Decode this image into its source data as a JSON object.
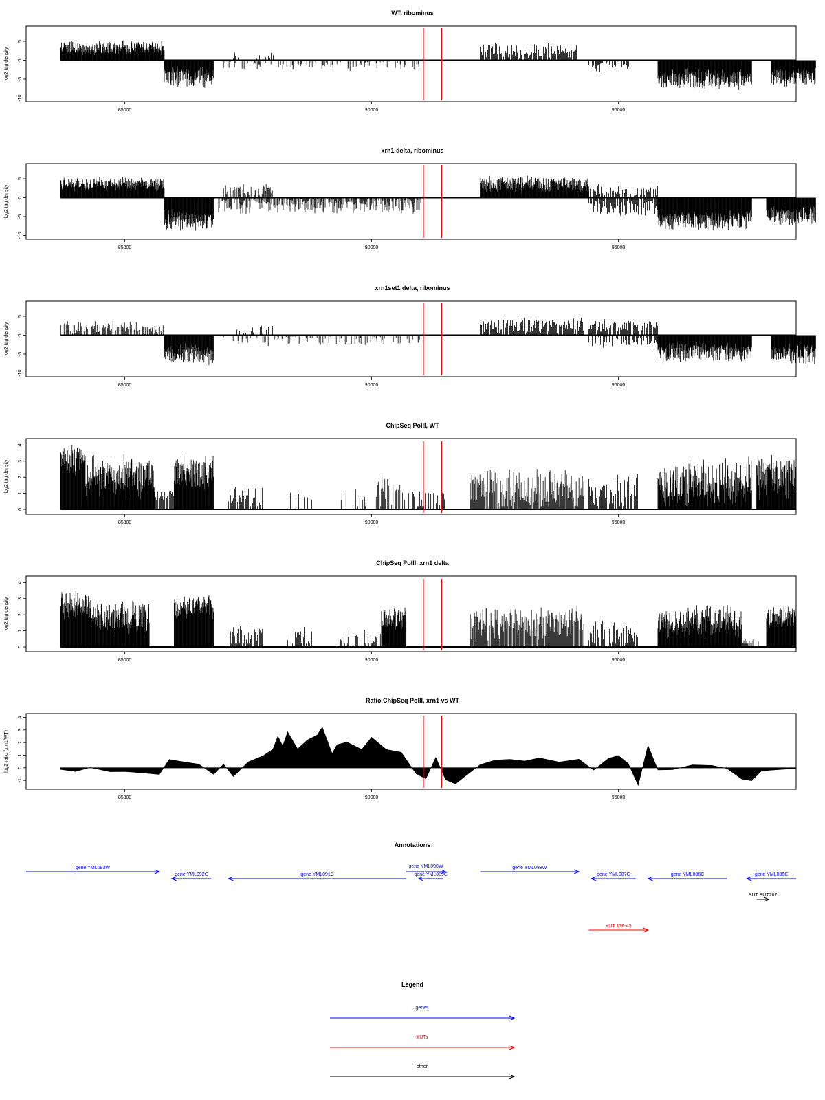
{
  "colors": {
    "signal": "#000000",
    "marker": "#ff0000",
    "genes": "#0000ff",
    "xuts": "#ff0000",
    "other": "#000000"
  },
  "markers_x": [
    91050,
    91420
  ],
  "x_ticks": [
    85000,
    90000,
    95000
  ],
  "x_tick_labels": [
    "85000",
    "90000",
    "95000"
  ],
  "xlim": [
    83000,
    98600
  ],
  "chart_data": [
    {
      "type": "bar",
      "title": "WT, ribominus",
      "ylabel": "log2 tag density",
      "ylim": [
        -11,
        9
      ],
      "y_ticks": [
        -10,
        -5,
        0,
        5
      ],
      "y_tick_labels": [
        "-10",
        "-5",
        "0",
        "5"
      ],
      "regions": [
        {
          "x": [
            83700,
            85800
          ],
          "sign": 1,
          "base": 3.2,
          "spread": 2.2,
          "fill": 1.0
        },
        {
          "x": [
            85800,
            86800
          ],
          "sign": -1,
          "base": 4.5,
          "spread": 3.0,
          "fill": 1.0
        },
        {
          "x": [
            87000,
            91000
          ],
          "sign": -1,
          "base": 1.0,
          "spread": 2.0,
          "fill": 0.35
        },
        {
          "x": [
            87200,
            88100
          ],
          "sign": 1,
          "base": 1.0,
          "spread": 1.5,
          "fill": 0.3
        },
        {
          "x": [
            92200,
            94200
          ],
          "sign": 1,
          "base": 2.5,
          "spread": 2.5,
          "fill": 0.9
        },
        {
          "x": [
            94400,
            95300
          ],
          "sign": -1,
          "base": 1.5,
          "spread": 2.0,
          "fill": 0.6
        },
        {
          "x": [
            95800,
            97700
          ],
          "sign": -1,
          "base": 5.0,
          "spread": 3.0,
          "fill": 1.0
        },
        {
          "x": [
            98100,
            99000
          ],
          "sign": -1,
          "base": 4.5,
          "spread": 3.0,
          "fill": 1.0
        }
      ]
    },
    {
      "type": "bar",
      "title": "xrn1 delta, ribominus",
      "ylabel": "log2 tag density",
      "ylim": [
        -11,
        9
      ],
      "y_ticks": [
        -10,
        -5,
        0,
        5
      ],
      "y_tick_labels": [
        "-10",
        "-5",
        "0",
        "5"
      ],
      "regions": [
        {
          "x": [
            83700,
            85800
          ],
          "sign": 1,
          "base": 3.5,
          "spread": 2.0,
          "fill": 1.0
        },
        {
          "x": [
            85800,
            86800
          ],
          "sign": -1,
          "base": 6.0,
          "spread": 3.0,
          "fill": 1.0
        },
        {
          "x": [
            86900,
            91000
          ],
          "sign": -1,
          "base": 2.0,
          "spread": 2.5,
          "fill": 0.8
        },
        {
          "x": [
            87000,
            88000
          ],
          "sign": 1,
          "base": 2.0,
          "spread": 2.0,
          "fill": 0.6
        },
        {
          "x": [
            92200,
            94400
          ],
          "sign": 1,
          "base": 3.5,
          "spread": 2.5,
          "fill": 1.0
        },
        {
          "x": [
            94400,
            95800
          ],
          "sign": 1,
          "base": 1.8,
          "spread": 2.0,
          "fill": 0.6
        },
        {
          "x": [
            94400,
            95800
          ],
          "sign": -1,
          "base": 2.5,
          "spread": 2.5,
          "fill": 0.8
        },
        {
          "x": [
            95800,
            97700
          ],
          "sign": -1,
          "base": 6.0,
          "spread": 3.0,
          "fill": 1.0
        },
        {
          "x": [
            98000,
            99000
          ],
          "sign": -1,
          "base": 5.0,
          "spread": 3.0,
          "fill": 1.0
        }
      ]
    },
    {
      "type": "bar",
      "title": "xrn1set1 delta, ribominus",
      "ylabel": "log2 tag density",
      "ylim": [
        -11,
        9
      ],
      "y_ticks": [
        -10,
        -5,
        0,
        5
      ],
      "y_tick_labels": [
        "-10",
        "-5",
        "0",
        "5"
      ],
      "regions": [
        {
          "x": [
            83700,
            85800
          ],
          "sign": 1,
          "base": 2.0,
          "spread": 2.0,
          "fill": 0.6
        },
        {
          "x": [
            85800,
            86800
          ],
          "sign": -1,
          "base": 5.0,
          "spread": 3.0,
          "fill": 1.0
        },
        {
          "x": [
            87000,
            91000
          ],
          "sign": -1,
          "base": 1.0,
          "spread": 2.0,
          "fill": 0.35
        },
        {
          "x": [
            87200,
            88000
          ],
          "sign": 1,
          "base": 1.5,
          "spread": 1.5,
          "fill": 0.35
        },
        {
          "x": [
            92200,
            94300
          ],
          "sign": 1,
          "base": 2.5,
          "spread": 2.5,
          "fill": 0.9
        },
        {
          "x": [
            94400,
            95800
          ],
          "sign": 1,
          "base": 2.5,
          "spread": 2.0,
          "fill": 0.8
        },
        {
          "x": [
            94400,
            95800
          ],
          "sign": -1,
          "base": 1.5,
          "spread": 2.0,
          "fill": 0.5
        },
        {
          "x": [
            95800,
            97700
          ],
          "sign": -1,
          "base": 4.5,
          "spread": 3.0,
          "fill": 1.0
        },
        {
          "x": [
            98100,
            99000
          ],
          "sign": -1,
          "base": 5.0,
          "spread": 3.0,
          "fill": 1.0
        }
      ]
    },
    {
      "type": "bar",
      "title": "ChipSeq PolII, WT",
      "ylabel": "log2 tag density",
      "ylim": [
        -0.3,
        4.4
      ],
      "y_ticks": [
        0,
        1,
        2,
        3,
        4
      ],
      "y_tick_labels": [
        "0",
        "1",
        "2",
        "3",
        "4"
      ],
      "regions": [
        {
          "x": [
            83700,
            84200
          ],
          "sign": 1,
          "base": 3.0,
          "spread": 1.2,
          "fill": 1.0
        },
        {
          "x": [
            84200,
            85600
          ],
          "sign": 1,
          "base": 2.0,
          "spread": 1.5,
          "fill": 1.0
        },
        {
          "x": [
            85600,
            86000
          ],
          "sign": 1,
          "base": 0.8,
          "spread": 0.5,
          "fill": 0.8
        },
        {
          "x": [
            86000,
            86800
          ],
          "sign": 1,
          "base": 2.3,
          "spread": 1.2,
          "fill": 1.0
        },
        {
          "x": [
            87100,
            87800
          ],
          "sign": 1,
          "base": 0.8,
          "spread": 1.0,
          "fill": 0.6
        },
        {
          "x": [
            88300,
            88800
          ],
          "sign": 1,
          "base": 0.8,
          "spread": 0.5,
          "fill": 0.3
        },
        {
          "x": [
            89300,
            90100
          ],
          "sign": 1,
          "base": 0.6,
          "spread": 0.8,
          "fill": 0.2
        },
        {
          "x": [
            90100,
            90600
          ],
          "sign": 1,
          "base": 1.0,
          "spread": 1.5,
          "fill": 0.7
        },
        {
          "x": [
            90600,
            91500
          ],
          "sign": 1,
          "base": 0.6,
          "spread": 0.8,
          "fill": 0.3
        },
        {
          "x": [
            92000,
            94300
          ],
          "sign": 1,
          "base": 1.2,
          "spread": 1.5,
          "fill": 0.9
        },
        {
          "x": [
            94400,
            95400
          ],
          "sign": 1,
          "base": 1.0,
          "spread": 1.5,
          "fill": 0.8
        },
        {
          "x": [
            95800,
            97700
          ],
          "sign": 1,
          "base": 1.5,
          "spread": 1.8,
          "fill": 1.0
        },
        {
          "x": [
            97800,
            98600
          ],
          "sign": 1,
          "base": 2.0,
          "spread": 1.6,
          "fill": 1.0
        }
      ]
    },
    {
      "type": "bar",
      "title": "ChipSeq PolII, xrn1 delta",
      "ylabel": "log2 tag density",
      "ylim": [
        -0.3,
        4.4
      ],
      "y_ticks": [
        0,
        1,
        2,
        3,
        4
      ],
      "y_tick_labels": [
        "0",
        "1",
        "2",
        "3",
        "4"
      ],
      "regions": [
        {
          "x": [
            83700,
            84300
          ],
          "sign": 1,
          "base": 2.6,
          "spread": 1.0,
          "fill": 1.0
        },
        {
          "x": [
            84300,
            85500
          ],
          "sign": 1,
          "base": 1.8,
          "spread": 1.2,
          "fill": 1.0
        },
        {
          "x": [
            86000,
            86800
          ],
          "sign": 1,
          "base": 2.5,
          "spread": 0.8,
          "fill": 1.0
        },
        {
          "x": [
            87100,
            87800
          ],
          "sign": 1,
          "base": 0.6,
          "spread": 0.8,
          "fill": 0.7
        },
        {
          "x": [
            88300,
            88800
          ],
          "sign": 1,
          "base": 0.6,
          "spread": 0.8,
          "fill": 0.6
        },
        {
          "x": [
            89300,
            90200
          ],
          "sign": 1,
          "base": 0.5,
          "spread": 0.8,
          "fill": 0.5
        },
        {
          "x": [
            90200,
            90700
          ],
          "sign": 1,
          "base": 1.8,
          "spread": 0.8,
          "fill": 1.0
        },
        {
          "x": [
            92000,
            94300
          ],
          "sign": 1,
          "base": 1.5,
          "spread": 1.2,
          "fill": 0.9
        },
        {
          "x": [
            94400,
            95400
          ],
          "sign": 1,
          "base": 0.8,
          "spread": 1.0,
          "fill": 0.7
        },
        {
          "x": [
            95800,
            97500
          ],
          "sign": 1,
          "base": 1.6,
          "spread": 1.2,
          "fill": 1.0
        },
        {
          "x": [
            97500,
            97900
          ],
          "sign": 1,
          "base": 0.3,
          "spread": 0.3,
          "fill": 0.5
        },
        {
          "x": [
            98000,
            98600
          ],
          "sign": 1,
          "base": 1.8,
          "spread": 0.8,
          "fill": 1.0
        }
      ]
    },
    {
      "type": "area",
      "title": "Ratio ChipSeq PolII, xrn1 vs WT",
      "ylabel": "log2 ratio (xrn1/WT)",
      "ylim": [
        -1.7,
        4.3
      ],
      "y_ticks": [
        -1,
        0,
        1,
        2,
        3,
        4
      ],
      "y_tick_labels": [
        "-1",
        "0",
        "1",
        "2",
        "3",
        "4"
      ],
      "x": [
        83700,
        84000,
        84300,
        84700,
        85000,
        85400,
        85700,
        85900,
        86100,
        86500,
        86800,
        87000,
        87200,
        87500,
        87800,
        88000,
        88100,
        88200,
        88300,
        88500,
        88700,
        88900,
        89000,
        89200,
        89300,
        89500,
        89800,
        90000,
        90300,
        90600,
        90900,
        91100,
        91300,
        91500,
        91700,
        91900,
        92200,
        92500,
        92800,
        93100,
        93400,
        93800,
        94200,
        94500,
        94800,
        95000,
        95200,
        95400,
        95600,
        95800,
        96100,
        96500,
        96900,
        97200,
        97500,
        97700,
        97900,
        98200,
        98600
      ],
      "y": [
        -0.2,
        -0.25,
        0.1,
        -0.3,
        -0.3,
        -0.4,
        -0.5,
        0.6,
        0.5,
        0.3,
        -0.5,
        0.3,
        -0.7,
        0.4,
        1.0,
        1.5,
        2.5,
        1.8,
        2.8,
        1.5,
        2.2,
        2.6,
        3.3,
        1.2,
        1.8,
        2.0,
        1.4,
        2.5,
        1.4,
        1.3,
        -0.4,
        -0.9,
        0.8,
        -1.0,
        -1.3,
        -0.6,
        0.2,
        0.6,
        0.7,
        0.5,
        0.8,
        0.4,
        0.7,
        -0.2,
        0.8,
        1.0,
        0.4,
        -1.4,
        1.8,
        -0.2,
        -0.1,
        0.3,
        0.2,
        -0.1,
        -0.9,
        -1.1,
        -0.3,
        -0.2,
        -0.1
      ]
    }
  ],
  "annotations": {
    "title": "Annotations",
    "features": [
      {
        "label": "gene YML093W",
        "kind": "genes",
        "start": 83000,
        "end": 85700,
        "strand": "+",
        "row": 0
      },
      {
        "label": "gene YML092C",
        "kind": "genes",
        "start": 85950,
        "end": 86750,
        "strand": "-",
        "row": 1
      },
      {
        "label": "gene YML091C",
        "kind": "genes",
        "start": 87100,
        "end": 90700,
        "strand": "-",
        "row": 1
      },
      {
        "label": "gene YML090W",
        "kind": "genes",
        "start": 90700,
        "end": 91500,
        "strand": "+",
        "row": 0
      },
      {
        "label": "gene YML089C",
        "kind": "genes",
        "start": 90950,
        "end": 91450,
        "strand": "-",
        "row": 1
      },
      {
        "label": "gene YML088W",
        "kind": "genes",
        "start": 92200,
        "end": 94200,
        "strand": "+",
        "row": 0
      },
      {
        "label": "gene YML087C",
        "kind": "genes",
        "start": 94450,
        "end": 95350,
        "strand": "-",
        "row": 1
      },
      {
        "label": "gene YML086C",
        "kind": "genes",
        "start": 95600,
        "end": 97200,
        "strand": "-",
        "row": 1
      },
      {
        "label": "gene YML085C",
        "kind": "genes",
        "start": 97600,
        "end": 99000,
        "strand": "-",
        "row": 1
      },
      {
        "label": "SUT SUT287",
        "kind": "other",
        "start": 97800,
        "end": 98050,
        "strand": "+",
        "row": 2
      },
      {
        "label": "XUT 13F-43",
        "kind": "xuts",
        "start": 94400,
        "end": 95600,
        "strand": "+",
        "row": 3
      }
    ]
  },
  "legend": {
    "title": "Legend",
    "items": [
      {
        "label": "genes",
        "kind": "genes"
      },
      {
        "label": "XUTs",
        "kind": "xuts"
      },
      {
        "label": "other",
        "kind": "other"
      }
    ]
  }
}
